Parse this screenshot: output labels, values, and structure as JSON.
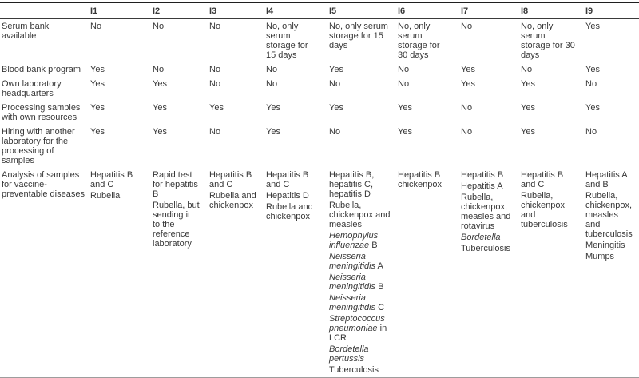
{
  "table": {
    "corner_label": "",
    "columns": [
      "I1",
      "I2",
      "I3",
      "I4",
      "I5",
      "I6",
      "I7",
      "I8",
      "I9"
    ],
    "rows": [
      {
        "label": "Serum bank available",
        "values": [
          "No",
          "No",
          "No",
          "No, only serum storage for 15 days",
          "No, only serum storage for 15 days",
          "No, only serum storage for 30 days",
          "No",
          "No, only serum storage for 30 days",
          "Yes"
        ]
      },
      {
        "label": "Blood bank program",
        "values": [
          "Yes",
          "No",
          "No",
          "No",
          "Yes",
          "No",
          "Yes",
          "No",
          "Yes"
        ]
      },
      {
        "label": "Own laboratory headquarters",
        "values": [
          "Yes",
          "Yes",
          "No",
          "No",
          "No",
          "No",
          "Yes",
          "Yes",
          "No"
        ]
      },
      {
        "label": "Processing samples with own resources",
        "values": [
          "Yes",
          "Yes",
          "Yes",
          "Yes",
          "Yes",
          "Yes",
          "No",
          "Yes",
          "Yes"
        ]
      },
      {
        "label": "Hiring with another laboratory for the processing of samples",
        "values": [
          "Yes",
          "Yes",
          "No",
          "Yes",
          "No",
          "Yes",
          "No",
          "Yes",
          "No"
        ]
      }
    ],
    "analysis": {
      "label": "Analysis of samples for vaccine-preventable diseases",
      "cells": [
        [
          [
            {
              "text": "Hepatitis B and C"
            }
          ],
          [
            {
              "text": "Rubella"
            }
          ]
        ],
        [
          [
            {
              "text": "Rapid test for hepatitis B"
            }
          ],
          [
            {
              "text": "Rubella, but sending it to the reference laboratory"
            }
          ]
        ],
        [
          [
            {
              "text": "Hepatitis B and C"
            }
          ],
          [
            {
              "text": "Rubella and chickenpox"
            }
          ]
        ],
        [
          [
            {
              "text": "Hepatitis B and C"
            }
          ],
          [
            {
              "text": "Hepatitis D"
            }
          ],
          [
            {
              "text": "Rubella and chickenpox"
            }
          ]
        ],
        [
          [
            {
              "text": "Hepatitis B, hepatitis C, hepatitis D"
            }
          ],
          [
            {
              "text": "Rubella, chickenpox and measles"
            }
          ],
          [
            {
              "text": "Hemophylus influenzae",
              "italic": true
            },
            {
              "text": " B"
            }
          ],
          [
            {
              "text": "Neisseria meningitidis",
              "italic": true
            },
            {
              "text": " A"
            }
          ],
          [
            {
              "text": "Neisseria meningitidis",
              "italic": true
            },
            {
              "text": " B"
            }
          ],
          [
            {
              "text": "Neisseria meningitidis",
              "italic": true
            },
            {
              "text": " C"
            }
          ],
          [
            {
              "text": "Streptococcus pneumoniae",
              "italic": true
            },
            {
              "text": " in LCR"
            }
          ],
          [
            {
              "text": "Bordetella pertussis",
              "italic": true
            }
          ],
          [
            {
              "text": "Tuberculosis"
            }
          ]
        ],
        [
          [
            {
              "text": "Hepatitis B chickenpox"
            }
          ]
        ],
        [
          [
            {
              "text": "Hepatitis B"
            }
          ],
          [
            {
              "text": "Hepatitis A"
            }
          ],
          [
            {
              "text": "Rubella, chickenpox, measles and rotavirus"
            }
          ],
          [
            {
              "text": "Bordetella",
              "italic": true
            }
          ],
          [
            {
              "text": "Tuberculosis"
            }
          ]
        ],
        [
          [
            {
              "text": "Hepatitis B and C"
            }
          ],
          [
            {
              "text": "Rubella, chickenpox and tuberculosis"
            }
          ]
        ],
        [
          [
            {
              "text": "Hepatitis A and B"
            }
          ],
          [
            {
              "text": "Rubella, chickenpox, measles and tuberculosis"
            }
          ],
          [
            {
              "text": "Meningitis"
            }
          ],
          [
            {
              "text": "Mumps"
            }
          ]
        ]
      ]
    }
  }
}
